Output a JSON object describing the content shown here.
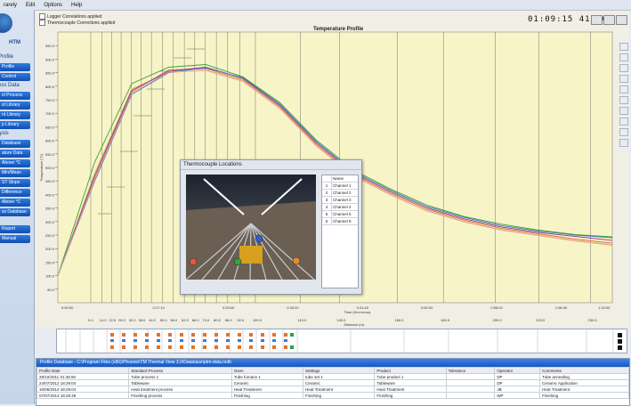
{
  "menu": [
    "rarely",
    "Edit",
    "Options",
    "Help"
  ],
  "sidebar": {
    "logo_text": "HTM",
    "items": [
      {
        "label": "Profile",
        "kind": "label"
      },
      {
        "label": "Profile",
        "kind": "button"
      },
      {
        "label": "Control",
        "kind": "button"
      },
      {
        "label": "ess Data",
        "kind": "label"
      },
      {
        "label": "el Process",
        "kind": "button"
      },
      {
        "label": "st Library",
        "kind": "button"
      },
      {
        "label": "nt Library",
        "kind": "button"
      },
      {
        "label": "p Library",
        "kind": "button"
      },
      {
        "label": "lysis",
        "kind": "label"
      },
      {
        "label": "Database",
        "kind": "button"
      },
      {
        "label": "ature Data",
        "kind": "button"
      },
      {
        "label": "Above °C",
        "kind": "button"
      },
      {
        "label": "Min/Mean",
        "kind": "button"
      },
      {
        "label": "ST Slope",
        "kind": "button"
      },
      {
        "label": "Difference",
        "kind": "button"
      },
      {
        "label": "Above °C",
        "kind": "button"
      },
      {
        "label": "ss Database",
        "kind": "button"
      },
      {
        "label": "Report",
        "kind": "button"
      },
      {
        "label": "Manual",
        "kind": "button"
      }
    ]
  },
  "chart_header": {
    "legend": [
      "Logger Correlations applied",
      "Thermocouple Corrections applied"
    ],
    "title": "Temperature Profile",
    "clock": "01:09:15  413°C"
  },
  "chart_data": {
    "type": "line",
    "title": "Temperature Profile",
    "xlabel": "Time (hh:mm:ss)",
    "x2label": "Distance (m)",
    "ylabel": "Temperature (°C)",
    "yticks": [
      950.0,
      900.0,
      850.0,
      800.0,
      750.0,
      700.0,
      650.0,
      600.0,
      550.0,
      500.0,
      450.0,
      400.0,
      350.0,
      300.0,
      250.0,
      200.0,
      150.0,
      100.0,
      50.0
    ],
    "xticks_time": [
      "0:00:00",
      "0:17:10",
      "0:25:00",
      "0:33:20",
      "0:41:40",
      "0:50:00",
      "0:58:20",
      "1:06:40",
      "1:15:00"
    ],
    "xticks_distance": [
      "0.0",
      "14.0",
      "22.5",
      "28.0",
      "32.0",
      "38.0",
      "44.0",
      "50.0",
      "56.0",
      "62.0",
      "68.0",
      "74.0",
      "80.0",
      "86.0",
      "92.0",
      "100.0",
      "110.0",
      "140.0",
      "160.0",
      "180.0",
      "200.0",
      "220.0",
      "230.0"
    ],
    "x_minutes": [
      0,
      5,
      10,
      15,
      20,
      25,
      30,
      35,
      40,
      45,
      50,
      55,
      60,
      65,
      70,
      75
    ],
    "grid": true,
    "series": [
      {
        "color": "#d8c040",
        "values": [
          100,
          480,
          790,
          850,
          860,
          820,
          720,
          580,
          470,
          400,
          340,
          300,
          270,
          250,
          230,
          215
        ]
      },
      {
        "color": "#e06040",
        "values": [
          100,
          460,
          780,
          860,
          865,
          825,
          725,
          585,
          475,
          405,
          345,
          305,
          275,
          255,
          235,
          220
        ]
      },
      {
        "color": "#8a3a9a",
        "values": [
          100,
          470,
          785,
          855,
          870,
          830,
          730,
          590,
          480,
          410,
          350,
          310,
          280,
          260,
          245,
          230
        ]
      },
      {
        "color": "#3a78c8",
        "values": [
          100,
          450,
          770,
          850,
          868,
          832,
          735,
          595,
          485,
          415,
          355,
          315,
          285,
          265,
          250,
          240
        ]
      },
      {
        "color": "#3aa03a",
        "values": [
          100,
          520,
          810,
          870,
          880,
          835,
          740,
          600,
          490,
          420,
          360,
          318,
          290,
          268,
          252,
          243
        ]
      },
      {
        "color": "#e8a0b0",
        "values": [
          100,
          455,
          775,
          852,
          858,
          818,
          718,
          578,
          468,
          398,
          338,
          298,
          268,
          248,
          228,
          212
        ]
      }
    ]
  },
  "dialog": {
    "title": "Thermocouple Locations",
    "table_header": "Name",
    "channels": [
      {
        "n": "1",
        "name": "Channel 1"
      },
      {
        "n": "2",
        "name": "Channel 2"
      },
      {
        "n": "3",
        "name": "Channel 3"
      },
      {
        "n": "4",
        "name": "Channel 4"
      },
      {
        "n": "5",
        "name": "Channel 5"
      },
      {
        "n": "6",
        "name": "Channel 6"
      }
    ],
    "marker_colors": [
      "#e05a3a",
      "#3aa040",
      "#3060d0",
      "#e08a3a"
    ]
  },
  "bottom": {
    "header": "Profile Database - C:\\Program Files (x86)\\Phoenix\\TM Thermal View 3.0\\Database\\ptm-data.mdb",
    "columns": [
      "Profile Date",
      "Standard Process",
      "Oven",
      "Settings",
      "Product",
      "Tolerance",
      "Operator",
      "Comments"
    ],
    "rows": [
      [
        "28/10/2011 01:45:50",
        "Tube process 1",
        "Tube furnace 1",
        "tube set 1",
        "Tube product 1",
        "",
        "DP",
        "Tube annealing"
      ],
      [
        "24/07/2012 18:29:04",
        "Tableware",
        "Ceramic",
        "Ceramic",
        "Tableware",
        "",
        "DP",
        "Ceramic Application"
      ],
      [
        "10/06/2014 18:29:04",
        "Heat treatment process",
        "Heat Treatment",
        "Heat Treatment",
        "Heat Treatment",
        "",
        "JB",
        "Heat Treatment"
      ],
      [
        "07/07/2014 18:28:49",
        "Finishing process",
        "Finishing",
        "Finishing",
        "Finishing",
        "",
        "WP",
        "Finishing"
      ]
    ]
  },
  "colors": {
    "accent": "#1556be",
    "plot_bg": "#f7f4c8"
  }
}
